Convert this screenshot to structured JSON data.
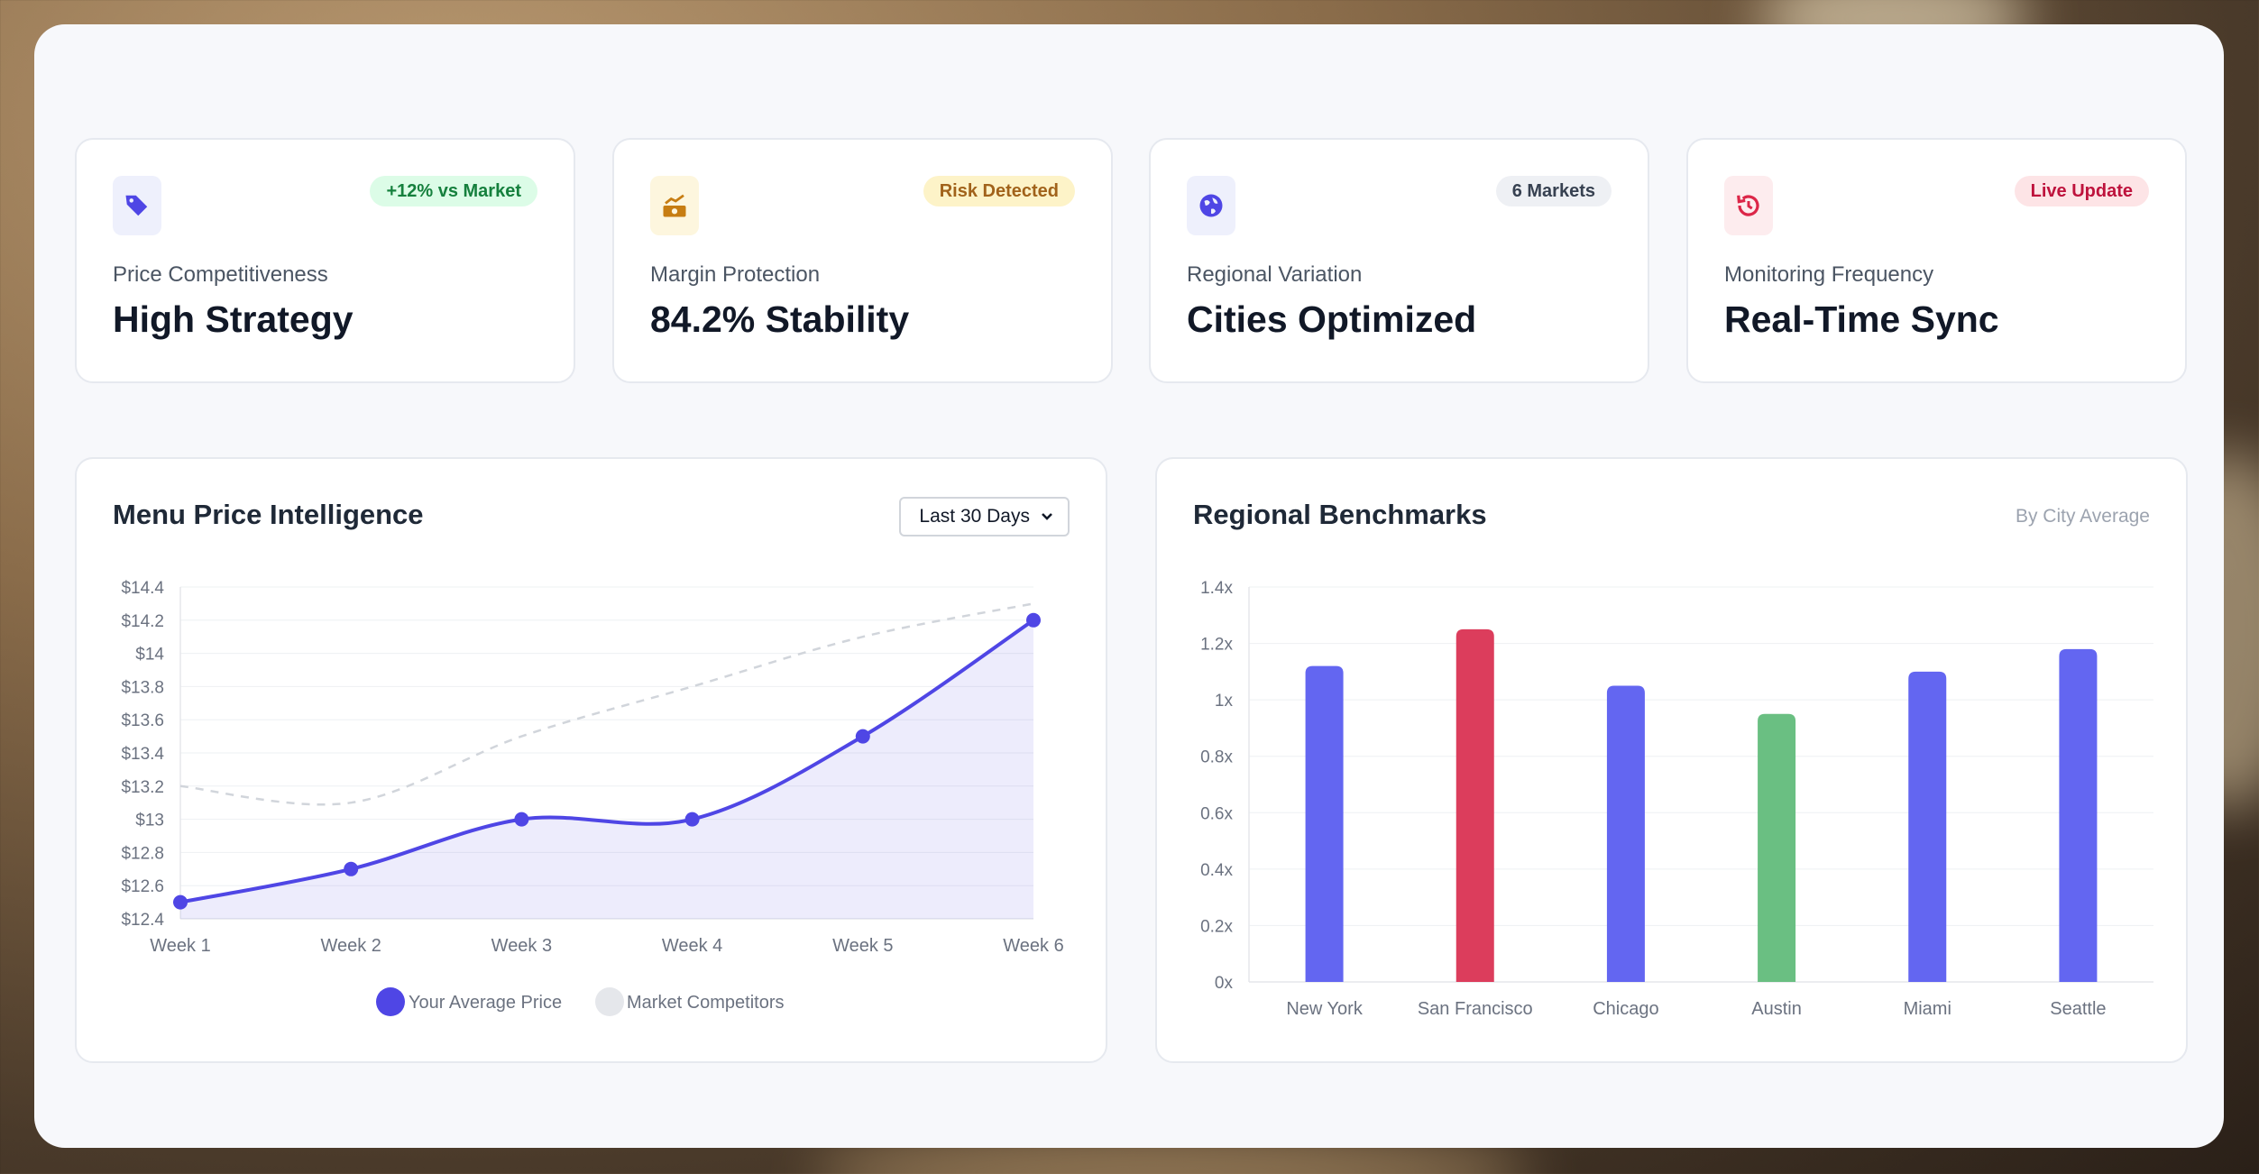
{
  "kpis": [
    {
      "label": "Price Competitiveness",
      "value": "High Strategy",
      "badge": "+12% vs Market",
      "icon": "tag-icon",
      "badge_bg": "#dcfce7",
      "badge_fg": "#15803d",
      "icon_bg": "#eef0fc",
      "icon_fg": "#4f46e5"
    },
    {
      "label": "Margin Protection",
      "value": "84.2% Stability",
      "badge": "Risk Detected",
      "icon": "money-chart-icon",
      "badge_bg": "#fdf3c8",
      "badge_fg": "#a1621a",
      "icon_bg": "#fdf6de",
      "icon_fg": "#c77d12"
    },
    {
      "label": "Regional Variation",
      "value": "Cities Optimized",
      "badge": "6 Markets",
      "icon": "globe-icon",
      "badge_bg": "#eef0f4",
      "badge_fg": "#374151",
      "icon_bg": "#eef0fc",
      "icon_fg": "#4f46e5"
    },
    {
      "label": "Monitoring Frequency",
      "value": "Real-Time Sync",
      "badge": "Live Update",
      "icon": "history-icon",
      "badge_bg": "#fde4e6",
      "badge_fg": "#be123c",
      "icon_bg": "#fdecee",
      "icon_fg": "#dc2648"
    }
  ],
  "price_card": {
    "title": "Menu Price Intelligence",
    "range_selected": "Last 30 Days"
  },
  "region_card": {
    "title": "Regional Benchmarks",
    "subtitle": "By City Average"
  },
  "chart_data": [
    {
      "type": "line",
      "x": [
        "Week 1",
        "Week 2",
        "Week 3",
        "Week 4",
        "Week 5",
        "Week 6"
      ],
      "series": [
        {
          "name": "Your Average Price",
          "values": [
            12.5,
            12.7,
            13.0,
            13.0,
            13.5,
            14.2
          ],
          "color": "#4f46e5",
          "fill": true
        },
        {
          "name": "Market Competitors",
          "values": [
            13.2,
            13.1,
            13.5,
            13.8,
            14.1,
            14.3
          ],
          "color": "#d1d5db",
          "dashed": true
        }
      ],
      "ylim": [
        12.4,
        14.4
      ],
      "yticks": [
        "$14.4",
        "$14.2",
        "$14",
        "$13.8",
        "$13.6",
        "$13.4",
        "$13.2",
        "$13",
        "$12.8",
        "$12.6",
        "$12.4"
      ],
      "legend": "bottom"
    },
    {
      "type": "bar",
      "categories": [
        "New York",
        "San Francisco",
        "Chicago",
        "Austin",
        "Miami",
        "Seattle"
      ],
      "values": [
        1.12,
        1.25,
        1.05,
        0.95,
        1.1,
        1.18
      ],
      "colors": [
        "#6366f1",
        "#dc3d5c",
        "#6366f1",
        "#6abf82",
        "#6366f1",
        "#6366f1"
      ],
      "ylim": [
        0,
        1.4
      ],
      "yticks": [
        "1.4x",
        "1.2x",
        "1x",
        "0.8x",
        "0.6x",
        "0.4x",
        "0.2x",
        "0x"
      ]
    }
  ]
}
